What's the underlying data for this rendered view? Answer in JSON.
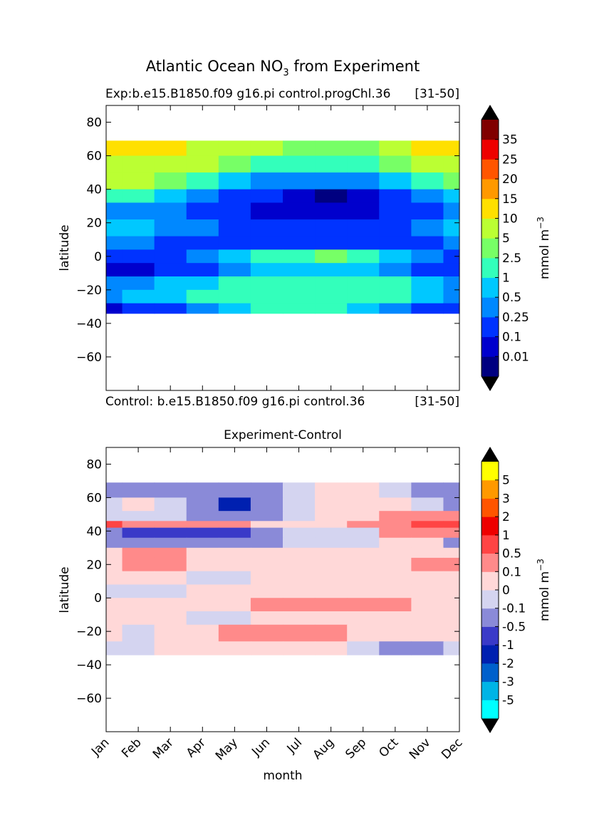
{
  "figure": {
    "title_prefix": "Atlantic Ocean NO",
    "title_subscript": "3",
    "title_suffix": " from Experiment",
    "xlabel": "month"
  },
  "chart_data": [
    {
      "type": "heatmap",
      "name": "experiment",
      "title_left": "Exp:b.e15.B1850.f09 g16.pi control.progChl.36",
      "title_right": "[31-50]",
      "bottom_left": "Control: b.e15.B1850.f09 g16.pi control.36",
      "bottom_right": "[31-50]",
      "ylabel": "latitude",
      "ylim": [
        -80,
        90
      ],
      "yticks": [
        80,
        60,
        40,
        20,
        0,
        -20,
        -40,
        -60
      ],
      "xlim": [
        1,
        12
      ],
      "data_lat_range": [
        -34,
        69
      ],
      "colorbar": {
        "label": "mmol m",
        "label_exp": "−3",
        "extend": "both",
        "colors": [
          "#000080",
          "#0000cd",
          "#0033ff",
          "#0088ff",
          "#00c8ff",
          "#33ffbb",
          "#77ff66",
          "#bbff33",
          "#ffe000",
          "#ff9900",
          "#ff5500",
          "#ee0000",
          "#800000"
        ],
        "tick_labels": [
          "0.01",
          "0.1",
          "0.25",
          "0.5",
          "1",
          "2.5",
          "5",
          "10",
          "15",
          "20",
          "25",
          "35"
        ],
        "under_color": "#000000",
        "over_color": "#000000"
      },
      "bands": [
        {
          "lat": [
            60,
            69
          ],
          "levels": [
            8,
            8,
            8,
            7,
            7,
            7,
            6,
            6,
            6,
            7,
            8,
            8
          ]
        },
        {
          "lat": [
            50,
            60
          ],
          "levels": [
            7,
            7,
            7,
            7,
            6,
            5,
            5,
            5,
            5,
            6,
            7,
            7
          ]
        },
        {
          "lat": [
            40,
            50
          ],
          "levels": [
            7,
            7,
            6,
            5,
            4,
            3,
            3,
            3,
            3,
            4,
            5,
            6
          ]
        },
        {
          "lat": [
            32,
            40
          ],
          "levels": [
            5,
            5,
            4,
            3,
            2,
            2,
            1,
            0,
            1,
            2,
            3,
            4
          ]
        },
        {
          "lat": [
            22,
            32
          ],
          "levels": [
            3,
            3,
            3,
            2,
            2,
            1,
            1,
            1,
            1,
            2,
            2,
            3
          ]
        },
        {
          "lat": [
            12,
            22
          ],
          "levels": [
            4,
            4,
            3,
            3,
            2,
            2,
            2,
            2,
            2,
            2,
            3,
            4
          ]
        },
        {
          "lat": [
            4,
            12
          ],
          "levels": [
            3,
            3,
            2,
            2,
            2,
            2,
            2,
            2,
            2,
            2,
            2,
            3
          ]
        },
        {
          "lat": [
            -4,
            4
          ],
          "levels": [
            2,
            2,
            2,
            3,
            4,
            5,
            5,
            6,
            5,
            4,
            3,
            2
          ]
        },
        {
          "lat": [
            -12,
            -4
          ],
          "levels": [
            1,
            1,
            2,
            2,
            3,
            4,
            4,
            4,
            4,
            3,
            2,
            2
          ]
        },
        {
          "lat": [
            -20,
            -12
          ],
          "levels": [
            3,
            3,
            4,
            4,
            5,
            5,
            5,
            5,
            5,
            5,
            4,
            3
          ]
        },
        {
          "lat": [
            -28,
            -20
          ],
          "levels": [
            3,
            4,
            4,
            5,
            5,
            5,
            5,
            5,
            5,
            5,
            4,
            3
          ]
        },
        {
          "lat": [
            -34,
            -28
          ],
          "levels": [
            1,
            2,
            2,
            3,
            4,
            5,
            5,
            5,
            4,
            3,
            2,
            2
          ]
        }
      ]
    },
    {
      "type": "heatmap",
      "name": "difference",
      "title_center": "Experiment-Control",
      "ylabel": "latitude",
      "ylim": [
        -80,
        90
      ],
      "yticks": [
        80,
        60,
        40,
        20,
        0,
        -20,
        -40,
        -60
      ],
      "xlim": [
        1,
        12
      ],
      "xticks": [
        "Jan",
        "Feb",
        "Mar",
        "Apr",
        "May",
        "Jun",
        "Jul",
        "Aug",
        "Sep",
        "Oct",
        "Nov",
        "Dec"
      ],
      "data_lat_range": [
        -34,
        69
      ],
      "colorbar": {
        "label": "mmol m",
        "label_exp": "−3",
        "extend": "both",
        "colors": [
          "#00ffff",
          "#00b4e6",
          "#0060cc",
          "#0020b0",
          "#3a3ac8",
          "#8a8ad8",
          "#d4d4f0",
          "#ffd8d8",
          "#ff8a8a",
          "#ff4444",
          "#ee0000",
          "#ff5500",
          "#ff9900",
          "#ffff00"
        ],
        "tick_labels": [
          "-5",
          "-3",
          "-2",
          "-1",
          "-0.5",
          "-0.1",
          "0",
          "0.1",
          "0.5",
          "1",
          "2",
          "3",
          "5"
        ],
        "under_color": "#000000",
        "over_color": "#000000"
      },
      "bands": [
        {
          "lat": [
            60,
            69
          ],
          "levels": [
            5,
            5,
            5,
            5,
            5,
            5,
            6,
            7,
            7,
            6,
            5,
            5
          ]
        },
        {
          "lat": [
            52,
            60
          ],
          "levels": [
            6,
            7,
            6,
            5,
            3,
            5,
            6,
            7,
            7,
            7,
            6,
            5
          ]
        },
        {
          "lat": [
            46,
            52
          ],
          "levels": [
            6,
            6,
            6,
            5,
            5,
            5,
            6,
            7,
            7,
            8,
            8,
            8
          ]
        },
        {
          "lat": [
            42,
            46
          ],
          "levels": [
            9,
            8,
            8,
            8,
            8,
            7,
            7,
            7,
            8,
            8,
            9,
            9
          ]
        },
        {
          "lat": [
            36,
            42
          ],
          "levels": [
            5,
            4,
            4,
            4,
            4,
            5,
            6,
            6,
            6,
            8,
            8,
            8
          ]
        },
        {
          "lat": [
            30,
            36
          ],
          "levels": [
            5,
            5,
            5,
            5,
            5,
            5,
            6,
            6,
            6,
            7,
            7,
            5
          ]
        },
        {
          "lat": [
            24,
            30
          ],
          "levels": [
            7,
            8,
            8,
            7,
            7,
            7,
            7,
            7,
            7,
            7,
            7,
            7
          ]
        },
        {
          "lat": [
            16,
            24
          ],
          "levels": [
            7,
            8,
            8,
            7,
            7,
            7,
            7,
            7,
            7,
            7,
            8,
            8
          ]
        },
        {
          "lat": [
            8,
            16
          ],
          "levels": [
            7,
            7,
            7,
            6,
            6,
            7,
            7,
            7,
            7,
            7,
            7,
            7
          ]
        },
        {
          "lat": [
            0,
            8
          ],
          "levels": [
            6,
            6,
            6,
            7,
            7,
            7,
            7,
            7,
            7,
            7,
            7,
            7
          ]
        },
        {
          "lat": [
            -8,
            0
          ],
          "levels": [
            7,
            7,
            7,
            7,
            7,
            8,
            8,
            8,
            8,
            8,
            7,
            7
          ]
        },
        {
          "lat": [
            -16,
            -8
          ],
          "levels": [
            7,
            7,
            7,
            6,
            6,
            7,
            7,
            7,
            7,
            7,
            7,
            7
          ]
        },
        {
          "lat": [
            -26,
            -16
          ],
          "levels": [
            7,
            6,
            7,
            7,
            8,
            8,
            8,
            8,
            7,
            7,
            7,
            7
          ]
        },
        {
          "lat": [
            -34,
            -26
          ],
          "levels": [
            6,
            6,
            7,
            7,
            7,
            7,
            7,
            7,
            6,
            5,
            5,
            6
          ]
        }
      ]
    }
  ]
}
